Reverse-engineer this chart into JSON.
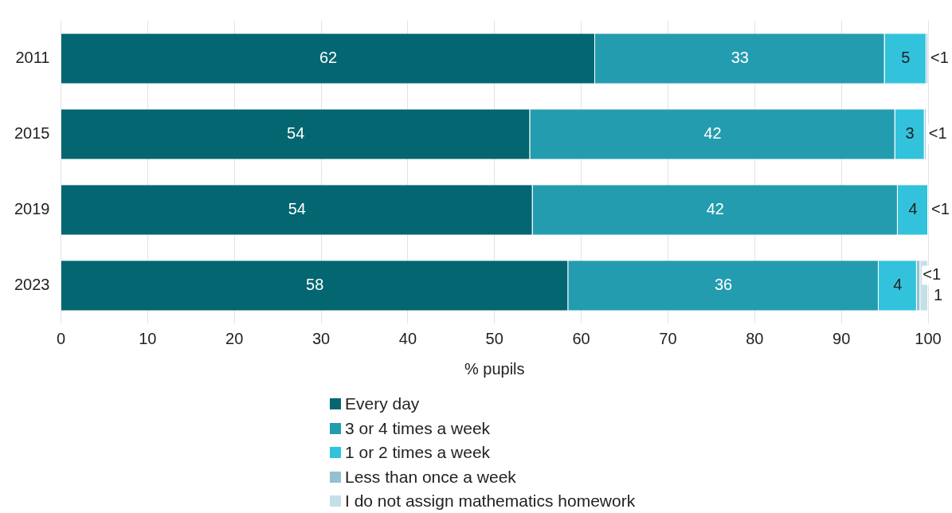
{
  "chart_data": {
    "type": "bar",
    "orientation": "horizontal",
    "stacked": true,
    "categories": [
      "2011",
      "2015",
      "2019",
      "2023"
    ],
    "series": [
      {
        "name": "Every day",
        "color": "#036670",
        "values": [
          61.6,
          54.1,
          54.4,
          58.5
        ],
        "value_labels": [
          "62",
          "54",
          "54",
          "58"
        ]
      },
      {
        "name": "3 or 4 times a week",
        "color": "#249caf",
        "values": [
          33.4,
          42.1,
          42.1,
          35.8
        ],
        "value_labels": [
          "33",
          "42",
          "42",
          "36"
        ]
      },
      {
        "name": "1 or 2 times a week",
        "color": "#32c2dc",
        "values": [
          4.8,
          3.4,
          3.5,
          4.4
        ],
        "value_labels": [
          "5",
          "3",
          "4",
          "4"
        ]
      },
      {
        "name": "Less than once a week",
        "color": "#93c1cf",
        "values": [
          0.2,
          0.2,
          0.1,
          0.4
        ],
        "value_labels": [
          "<1",
          "<1",
          "<1",
          "<1"
        ]
      },
      {
        "name": "I do not assign mathematics homework",
        "color": "#c5dfe7",
        "values": [
          null,
          null,
          null,
          0.9
        ],
        "value_labels": [
          null,
          null,
          null,
          "1"
        ]
      }
    ],
    "xlim": [
      0,
      100
    ],
    "xticks": [
      0,
      10,
      20,
      30,
      40,
      50,
      60,
      70,
      80,
      90,
      100
    ],
    "xlabel": "% pupils",
    "grid": "x",
    "legend": "bottom"
  }
}
